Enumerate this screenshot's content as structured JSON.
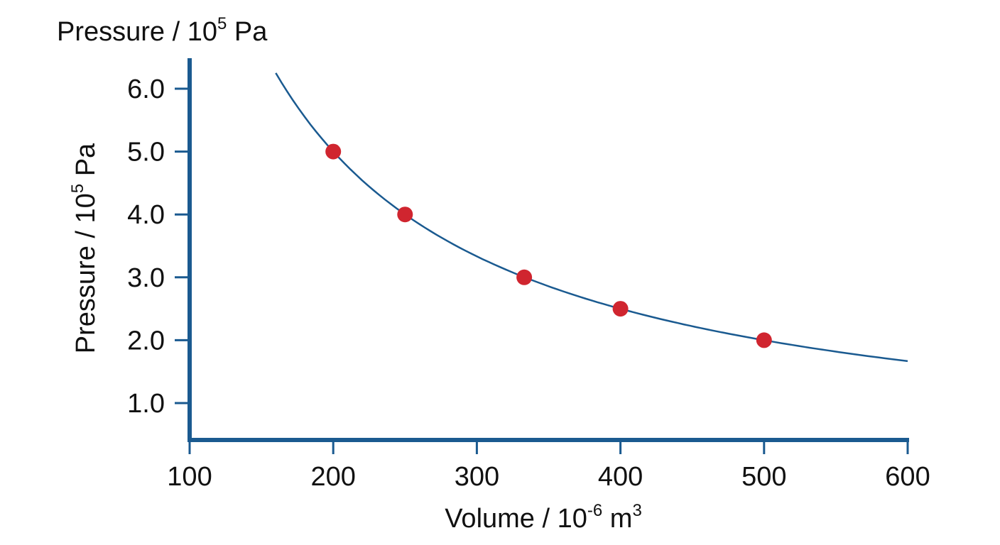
{
  "chart_data": {
    "type": "scatter",
    "top_label": {
      "main": "Pressure / 10",
      "sup": "5",
      "tail": " Pa"
    },
    "ylabel": {
      "main": "Pressure / 10",
      "sup": "5",
      "tail": " Pa"
    },
    "xlabel": {
      "main": "Volume / 10",
      "sup": "-6",
      "mid": " m",
      "sup2": "3"
    },
    "xlim": [
      100,
      600
    ],
    "ylim": [
      0.4,
      6.5
    ],
    "x_ticks": [
      100,
      200,
      300,
      400,
      500,
      600
    ],
    "x_tick_labels": [
      "100",
      "200",
      "300",
      "400",
      "500",
      "600"
    ],
    "y_ticks": [
      1,
      2,
      3,
      4,
      5,
      6
    ],
    "y_tick_labels": [
      "1.0",
      "2.0",
      "3.0",
      "4.0",
      "5.0",
      "6.0"
    ],
    "grid": false,
    "series": [
      {
        "type": "scatter",
        "x": [
          200,
          250,
          333,
          400,
          500
        ],
        "y": [
          5.0,
          4.0,
          3.0,
          2.5,
          2.0
        ]
      },
      {
        "type": "line",
        "function": "y = 1000 / x",
        "x_range": [
          160,
          600
        ],
        "x": [
          160,
          180,
          200,
          225,
          250,
          275,
          300,
          333,
          366,
          400,
          450,
          500,
          550,
          600
        ],
        "y": [
          6.25,
          5.56,
          5.0,
          4.44,
          4.0,
          3.64,
          3.33,
          3.0,
          2.73,
          2.5,
          2.22,
          2.0,
          1.82,
          1.67
        ]
      }
    ],
    "colors": {
      "axis": "#1a5a90",
      "curve": "#1a5a90",
      "points": "#d0252f"
    }
  }
}
